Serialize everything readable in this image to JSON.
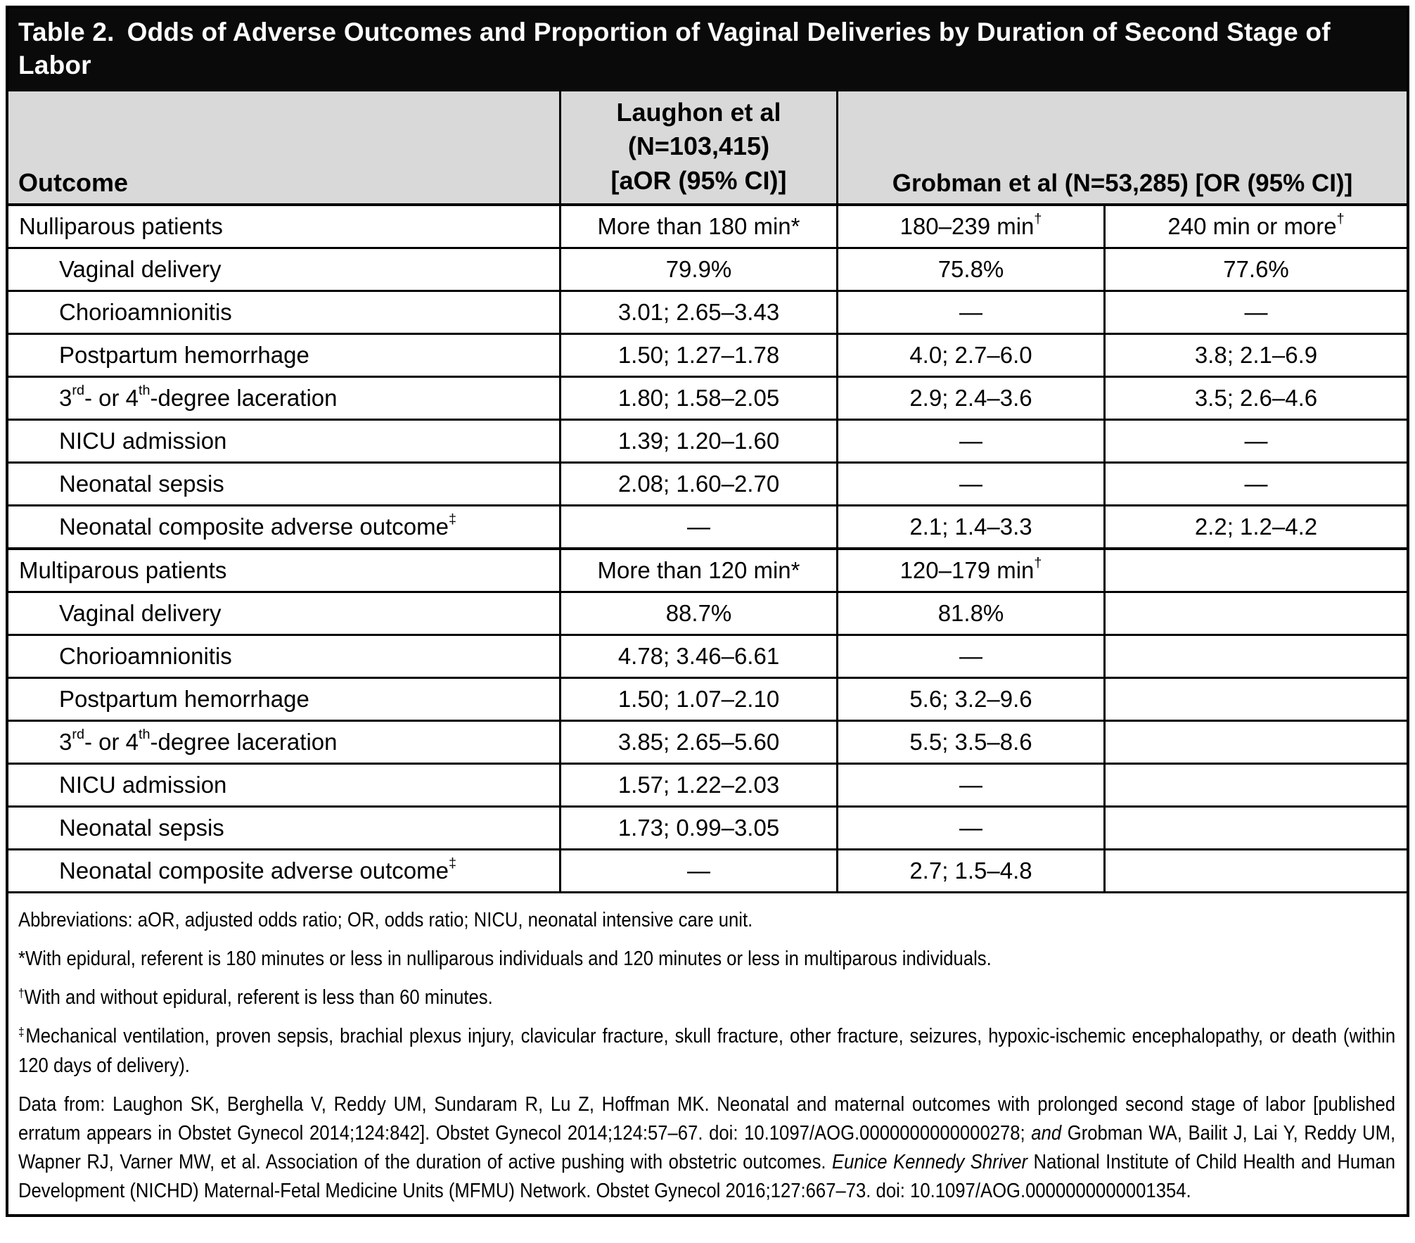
{
  "title": {
    "prefix": "Table 2.",
    "text": "Odds of Adverse Outcomes and Proportion of Vaginal Deliveries by Duration of Second Stage of Labor"
  },
  "columns": {
    "outcome": "Outcome",
    "laughon": [
      "Laughon et al",
      "(N=103,415)",
      "[aOR (95% CI)]"
    ],
    "grobman": "Grobman et al (N=53,285) [OR (95% CI)]"
  },
  "sections": [
    {
      "label": "Nulliparous patients",
      "durations": [
        "More than 180 min*",
        "180–239 min^{†}",
        "240 min or more^{†}"
      ],
      "rows": [
        {
          "label": "Vaginal delivery",
          "values": [
            "79.9%",
            "75.8%",
            "77.6%"
          ]
        },
        {
          "label": "Chorioamnionitis",
          "values": [
            "3.01; 2.65–3.43",
            "—",
            "—"
          ]
        },
        {
          "label": "Postpartum hemorrhage",
          "values": [
            "1.50; 1.27–1.78",
            "4.0; 2.7–6.0",
            "3.8; 2.1–6.9"
          ]
        },
        {
          "label": "3^{rd}- or 4^{th}-degree laceration",
          "values": [
            "1.80; 1.58–2.05",
            "2.9; 2.4–3.6",
            "3.5; 2.6–4.6"
          ]
        },
        {
          "label": "NICU admission",
          "values": [
            "1.39; 1.20–1.60",
            "—",
            "—"
          ]
        },
        {
          "label": "Neonatal sepsis",
          "values": [
            "2.08; 1.60–2.70",
            "—",
            "—"
          ]
        },
        {
          "label": "Neonatal composite adverse outcome^{‡}",
          "values": [
            "—",
            "2.1; 1.4–3.3",
            "2.2; 1.2–4.2"
          ]
        }
      ]
    },
    {
      "label": "Multiparous patients",
      "durations": [
        "More than 120 min*",
        "120–179 min^{†}",
        ""
      ],
      "rows": [
        {
          "label": "Vaginal delivery",
          "values": [
            "88.7%",
            "81.8%",
            ""
          ]
        },
        {
          "label": "Chorioamnionitis",
          "values": [
            "4.78; 3.46–6.61",
            "—",
            ""
          ]
        },
        {
          "label": "Postpartum hemorrhage",
          "values": [
            "1.50; 1.07–2.10",
            "5.6; 3.2–9.6",
            ""
          ]
        },
        {
          "label": "3^{rd}- or 4^{th}-degree laceration",
          "values": [
            "3.85; 2.65–5.60",
            "5.5; 3.5–8.6",
            ""
          ]
        },
        {
          "label": "NICU admission",
          "values": [
            "1.57; 1.22–2.03",
            "—",
            ""
          ]
        },
        {
          "label": "Neonatal sepsis",
          "values": [
            "1.73; 0.99–3.05",
            "—",
            ""
          ]
        },
        {
          "label": "Neonatal composite adverse outcome^{‡}",
          "values": [
            "—",
            "2.7; 1.5–4.8",
            ""
          ]
        }
      ]
    }
  ],
  "footnotes": [
    "Abbreviations: aOR, adjusted odds ratio; OR, odds ratio; NICU, neonatal intensive care unit.",
    "*With epidural, referent is 180 minutes or less in nulliparous individuals and 120 minutes or less in multiparous individuals.",
    "^{†}With and without epidural, referent is less than 60 minutes.",
    "^{‡}Mechanical ventilation, proven sepsis, brachial plexus injury, clavicular fracture, skull fracture, other fracture, seizures, hypoxic-ischemic encephalopathy, or death (within 120 days of delivery).",
    "Data from: Laughon SK, Berghella V, Reddy UM, Sundaram R, Lu Z, Hoffman MK. Neonatal and maternal outcomes with prolonged second stage of labor [published erratum appears in Obstet Gynecol 2014;124:842]. Obstet Gynecol 2014;124:57–67. doi: 10.1097/AOG.0000000000000278; *and* Grobman WA, Bailit J, Lai Y, Reddy UM, Wapner RJ, Varner MW, et al. Association of the duration of active pushing with obstetric outcomes. *Eunice Kennedy Shriver* National Institute of Child Health and Human Development (NICHD) Maternal-Fetal Medicine Units (MFMU) Network. Obstet Gynecol 2016;127:667–73. doi: 10.1097/AOG.0000000000001354."
  ],
  "colors": {
    "title_bg": "#0a0a0a",
    "header_bg": "#d9d9d9",
    "border": "#000000"
  }
}
